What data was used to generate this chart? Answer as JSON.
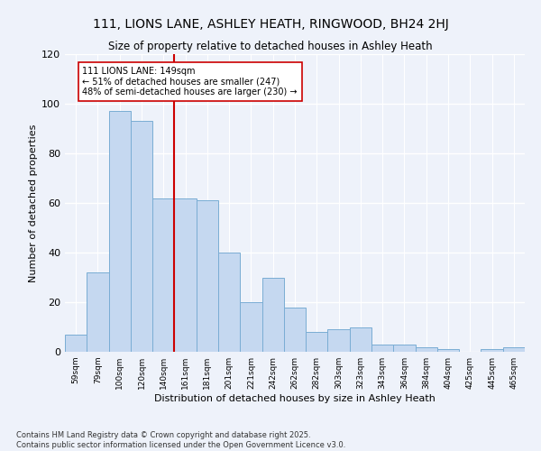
{
  "title": "111, LIONS LANE, ASHLEY HEATH, RINGWOOD, BH24 2HJ",
  "subtitle": "Size of property relative to detached houses in Ashley Heath",
  "xlabel": "Distribution of detached houses by size in Ashley Heath",
  "ylabel": "Number of detached properties",
  "bar_color": "#c5d8f0",
  "bar_edge_color": "#7aadd4",
  "background_color": "#eef2fa",
  "grid_color": "#ffffff",
  "categories": [
    "59sqm",
    "79sqm",
    "100sqm",
    "120sqm",
    "140sqm",
    "161sqm",
    "181sqm",
    "201sqm",
    "221sqm",
    "242sqm",
    "262sqm",
    "282sqm",
    "303sqm",
    "323sqm",
    "343sqm",
    "364sqm",
    "384sqm",
    "404sqm",
    "425sqm",
    "445sqm",
    "465sqm"
  ],
  "values": [
    7,
    32,
    97,
    93,
    62,
    62,
    61,
    40,
    20,
    30,
    18,
    8,
    9,
    10,
    3,
    3,
    2,
    1,
    0,
    1,
    2
  ],
  "ylim": [
    0,
    120
  ],
  "yticks": [
    0,
    20,
    40,
    60,
    80,
    100,
    120
  ],
  "property_line_x": 4.5,
  "annotation_text": "111 LIONS LANE: 149sqm\n← 51% of detached houses are smaller (247)\n48% of semi-detached houses are larger (230) →",
  "red_line_color": "#cc0000",
  "annotation_box_color": "#ffffff",
  "annotation_box_edge_color": "#cc0000",
  "footer_text": "Contains HM Land Registry data © Crown copyright and database right 2025.\nContains public sector information licensed under the Open Government Licence v3.0."
}
